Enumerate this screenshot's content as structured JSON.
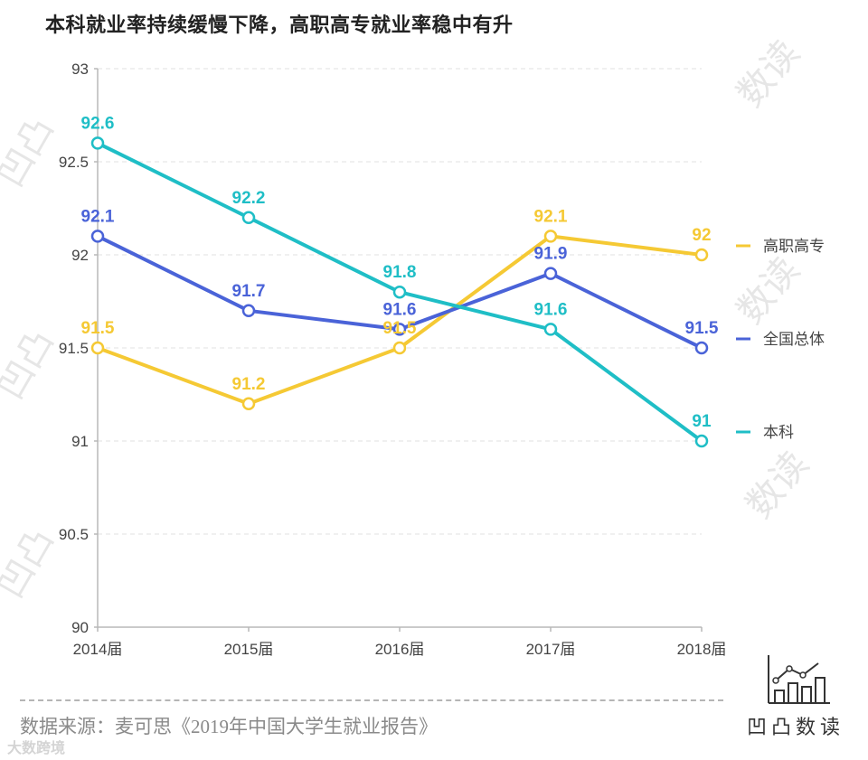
{
  "title": "本科就业率持续缓慢下降，高职高专就业率稳中有升",
  "source": "数据来源：麦可思《2019年中国大学生就业报告》",
  "brand": {
    "name": "凹凸数读"
  },
  "watermarks": {
    "text": "凹凸数读",
    "corner_text": "大数跨境"
  },
  "colors": {
    "gaozhi": "#f5c934",
    "quanguo": "#4a63d8",
    "benke": "#1fbec6",
    "grid": "#e2e2e2",
    "axis": "#b8b8b8"
  },
  "chart_data": {
    "type": "line",
    "title": "本科就业率持续缓慢下降，高职高专就业率稳中有升",
    "categories": [
      "2014届",
      "2015届",
      "2016届",
      "2017届",
      "2018届"
    ],
    "series": [
      {
        "name": "高职高专",
        "color": "#f5c934",
        "values": [
          91.5,
          91.2,
          91.5,
          92.1,
          92
        ],
        "labels": [
          "91.5",
          "91.2",
          "91.5",
          "92.1",
          "92"
        ]
      },
      {
        "name": "全国总体",
        "color": "#4a63d8",
        "values": [
          92.1,
          91.7,
          91.6,
          91.9,
          91.5
        ],
        "labels": [
          "92.1",
          "91.7",
          "91.6",
          "91.9",
          "91.5"
        ]
      },
      {
        "name": "本科",
        "color": "#1fbec6",
        "values": [
          92.6,
          92.2,
          91.8,
          91.6,
          91
        ],
        "labels": [
          "92.6",
          "92.2",
          "91.8",
          "91.6",
          "91"
        ]
      }
    ],
    "y_ticks": [
      "90",
      "90.5",
      "91",
      "91.5",
      "92",
      "92.5",
      "93"
    ],
    "ylim": [
      90,
      93
    ],
    "grid": true,
    "legend_position": "right"
  }
}
